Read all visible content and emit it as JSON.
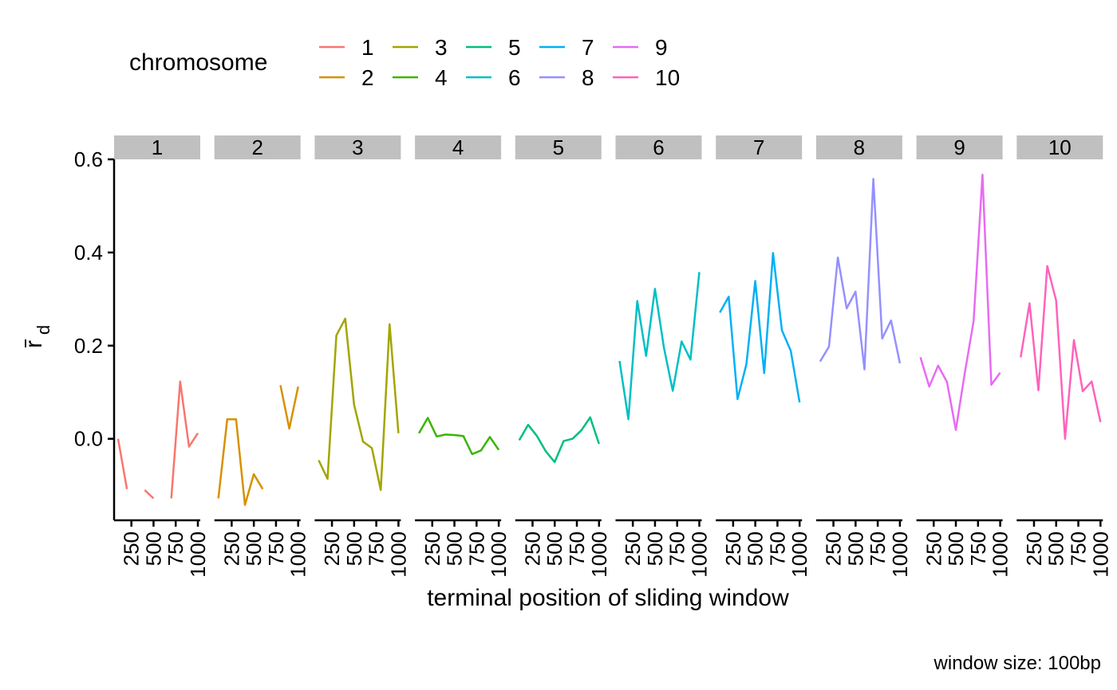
{
  "chart_data": {
    "type": "line",
    "layout": "faceted small multiples, one panel per chromosome, shared y axis",
    "legend": {
      "title": "chromosome",
      "placement": "top",
      "entries": [
        {
          "label": "1",
          "color": "#F8766D"
        },
        {
          "label": "2",
          "color": "#D89000"
        },
        {
          "label": "3",
          "color": "#A3A500"
        },
        {
          "label": "4",
          "color": "#39B600"
        },
        {
          "label": "5",
          "color": "#00BF7D"
        },
        {
          "label": "6",
          "color": "#00BFC4"
        },
        {
          "label": "7",
          "color": "#00B0F6"
        },
        {
          "label": "8",
          "color": "#9590FF"
        },
        {
          "label": "9",
          "color": "#E76BF3"
        },
        {
          "label": "10",
          "color": "#FF62BC"
        }
      ]
    },
    "xlabel": "terminal position of sliding window",
    "ylabel_main": "r",
    "ylabel_sub": "d",
    "caption": "window size: 100bp",
    "xlim": [
      100,
      1000
    ],
    "xticks": [
      250,
      500,
      750,
      1000
    ],
    "xtick_labels": [
      "250",
      "500",
      "750",
      "1000"
    ],
    "ylim": [
      -0.175,
      0.6
    ],
    "yticks": [
      0.0,
      0.2,
      0.4,
      0.6
    ],
    "ytick_labels": [
      "0.0",
      "0.2",
      "0.4",
      "0.6"
    ],
    "x": [
      100,
      200,
      300,
      400,
      500,
      600,
      700,
      800,
      900,
      1000
    ],
    "series": [
      {
        "name": "1",
        "color": "#F8766D",
        "values": [
          0.0,
          -0.108,
          null,
          -0.11,
          -0.128,
          null,
          -0.128,
          0.123,
          -0.017,
          0.012
        ]
      },
      {
        "name": "2",
        "color": "#D89000",
        "values": [
          -0.128,
          0.042,
          0.042,
          -0.142,
          -0.076,
          -0.108,
          null,
          0.115,
          0.022,
          0.112
        ]
      },
      {
        "name": "3",
        "color": "#A3A500",
        "values": [
          -0.046,
          -0.086,
          0.222,
          0.258,
          0.073,
          -0.006,
          -0.02,
          -0.11,
          0.246,
          0.012
        ]
      },
      {
        "name": "4",
        "color": "#39B600",
        "values": [
          0.012,
          0.045,
          0.005,
          0.009,
          0.008,
          0.006,
          -0.033,
          -0.025,
          0.004,
          -0.024
        ]
      },
      {
        "name": "5",
        "color": "#00BF7D",
        "values": [
          -0.003,
          0.03,
          0.006,
          -0.027,
          -0.05,
          -0.005,
          0.0,
          0.018,
          0.046,
          -0.011
        ]
      },
      {
        "name": "6",
        "color": "#00BFC4",
        "values": [
          0.167,
          0.042,
          0.296,
          0.178,
          0.322,
          0.196,
          0.103,
          0.209,
          0.17,
          0.358
        ]
      },
      {
        "name": "7",
        "color": "#00B0F6",
        "values": [
          0.271,
          0.305,
          0.085,
          0.16,
          0.339,
          0.141,
          0.399,
          0.233,
          0.189,
          0.078
        ]
      },
      {
        "name": "8",
        "color": "#9590FF",
        "values": [
          0.166,
          0.198,
          0.389,
          0.28,
          0.316,
          0.149,
          0.558,
          0.215,
          0.254,
          0.162
        ]
      },
      {
        "name": "9",
        "color": "#E76BF3",
        "values": [
          0.175,
          0.112,
          0.157,
          0.122,
          0.019,
          0.141,
          0.253,
          0.567,
          0.116,
          0.142
        ]
      },
      {
        "name": "10",
        "color": "#FF62BC",
        "values": [
          0.175,
          0.291,
          0.104,
          0.371,
          0.297,
          0.0,
          0.212,
          0.102,
          0.123,
          0.036
        ]
      }
    ],
    "strip_color": "#C0C0C0",
    "grid": false
  }
}
